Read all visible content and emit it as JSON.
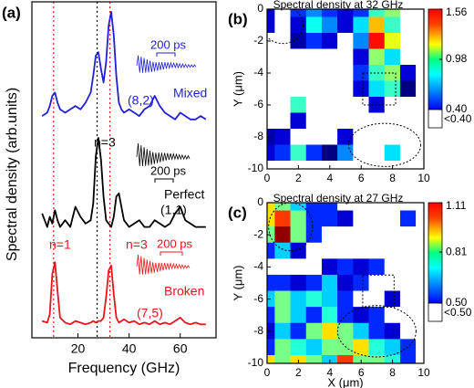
{
  "chart_data": [
    {
      "type": "line",
      "panel_label": "(a)",
      "xlabel": "Frequency (GHz)",
      "ylabel": "Spectral density (arb.units)",
      "xlim": [
        2,
        74
      ],
      "ylim": [
        0,
        10
      ],
      "xticks": [
        20,
        40,
        60
      ],
      "x": [
        6,
        8,
        9,
        10,
        11,
        12,
        13,
        15,
        17,
        19,
        21,
        23,
        25,
        26,
        27,
        28,
        29,
        30,
        31,
        32,
        33,
        34,
        35,
        36,
        37,
        38,
        40,
        42,
        44,
        46,
        48,
        50,
        52,
        54,
        56,
        58,
        60,
        62,
        64,
        66,
        68,
        70
      ],
      "series": [
        {
          "name": "Mixed",
          "color": "#1f1fd6",
          "values": [
            6.6,
            6.7,
            6.9,
            7.2,
            7.3,
            7.0,
            6.8,
            6.7,
            6.8,
            6.9,
            6.8,
            7.0,
            7.3,
            7.8,
            8.4,
            8.5,
            8.0,
            7.6,
            8.2,
            9.3,
            9.7,
            9.0,
            7.8,
            7.0,
            6.8,
            6.7,
            6.8,
            6.7,
            6.6,
            6.8,
            6.9,
            7.2,
            6.9,
            6.7,
            6.6,
            6.5,
            6.7,
            6.6,
            6.5,
            6.5,
            6.6,
            6.5
          ]
        },
        {
          "name": "Perfect",
          "color": "#000000",
          "values": [
            3.7,
            3.3,
            3.6,
            3.4,
            3.8,
            3.5,
            3.3,
            3.5,
            3.3,
            3.9,
            3.6,
            3.4,
            3.5,
            4.0,
            5.4,
            5.95,
            5.3,
            4.2,
            3.5,
            3.4,
            3.3,
            3.6,
            4.2,
            4.3,
            3.9,
            3.5,
            3.3,
            3.4,
            3.5,
            3.3,
            3.3,
            3.5,
            3.4,
            3.3,
            3.4,
            3.7,
            3.9,
            3.5,
            3.4,
            3.3,
            3.3,
            3.3
          ]
        },
        {
          "name": "Broken",
          "color": "#e8141c",
          "values": [
            0.5,
            0.45,
            0.7,
            1.9,
            2.25,
            1.4,
            0.6,
            0.45,
            0.4,
            0.5,
            0.45,
            0.4,
            0.45,
            0.5,
            0.45,
            0.5,
            0.5,
            0.6,
            1.2,
            2.0,
            2.15,
            1.3,
            0.6,
            0.45,
            0.5,
            0.55,
            0.45,
            0.5,
            0.4,
            0.45,
            0.4,
            0.5,
            0.4,
            0.45,
            0.4,
            0.5,
            0.6,
            0.45,
            0.4,
            0.45,
            0.4,
            0.4
          ]
        }
      ],
      "vlines": [
        {
          "x": 10.5,
          "color": "#e8141c"
        },
        {
          "x": 27.5,
          "color": "#000000"
        },
        {
          "x": 32.5,
          "color": "#e8141c"
        }
      ],
      "annotations": [
        {
          "text": "(8,2)",
          "color": "#1f1fd6"
        },
        {
          "text": "200 ps",
          "color": "#1f1fd6"
        },
        {
          "text": "n=3",
          "color": "#000000"
        },
        {
          "text": "200 ps",
          "color": "#000000"
        },
        {
          "text": "(1.1)",
          "color": "#000000"
        },
        {
          "text": "n=1",
          "color": "#e8141c"
        },
        {
          "text": "n=3",
          "color": "#e8141c"
        },
        {
          "text": "200 ps",
          "color": "#e8141c"
        },
        {
          "text": "(7,5)",
          "color": "#e8141c"
        }
      ]
    },
    {
      "type": "heatmap",
      "panel_label": "(b)",
      "title": "Spectral density at 32 GHz",
      "ylabel": "Y (μm)",
      "xlim": [
        0,
        10
      ],
      "ylim": [
        -10,
        0
      ],
      "xticks": [
        0,
        2,
        4,
        6,
        8,
        10
      ],
      "yticks": [
        0,
        -2,
        -4,
        -6,
        -8,
        -10
      ],
      "x": [
        0,
        1,
        2,
        3,
        4,
        5,
        6,
        7,
        8,
        9,
        10
      ],
      "y": [
        0,
        -1,
        -2,
        -3,
        -4,
        -5,
        -6,
        -7,
        -8,
        -9,
        -10
      ],
      "z": [
        [
          0.5,
          0.3,
          0.6,
          0.7,
          0.6,
          0.5,
          0.6,
          0.9,
          1.0,
          0.3,
          0.3
        ],
        [
          0.5,
          0.3,
          0.5,
          0.85,
          0.7,
          0.5,
          0.8,
          1.2,
          0.9,
          0.3,
          0.3
        ],
        [
          0.3,
          0.3,
          0.45,
          0.6,
          0.5,
          0.3,
          0.7,
          1.4,
          1.1,
          0.3,
          0.3
        ],
        [
          0.3,
          0.3,
          0.3,
          0.3,
          0.3,
          0.3,
          0.5,
          1.0,
          0.8,
          0.3,
          0.3
        ],
        [
          0.3,
          0.3,
          0.3,
          0.3,
          0.3,
          0.3,
          0.6,
          0.9,
          1.0,
          0.5,
          0.3
        ],
        [
          0.3,
          0.3,
          0.3,
          0.3,
          0.3,
          0.3,
          0.5,
          0.8,
          0.9,
          0.4,
          0.3
        ],
        [
          0.3,
          0.3,
          0.9,
          0.3,
          0.3,
          0.3,
          0.3,
          0.5,
          0.3,
          0.3,
          0.3
        ],
        [
          0.3,
          0.3,
          0.5,
          0.3,
          0.3,
          0.3,
          0.3,
          0.3,
          0.3,
          0.3,
          0.3
        ],
        [
          0.45,
          0.5,
          0.3,
          0.3,
          0.3,
          0.5,
          0.3,
          0.3,
          0.3,
          0.3,
          0.3
        ],
        [
          0.5,
          0.6,
          0.9,
          0.6,
          0.4,
          0.7,
          0.3,
          0.3,
          0.8,
          0.3,
          0.3
        ],
        [
          0.3,
          0.3,
          0.3,
          0.3,
          0.3,
          0.3,
          0.3,
          0.3,
          0.3,
          0.3,
          0.3
        ]
      ],
      "zlim": [
        0.4,
        1.56
      ],
      "zticks": [
        {
          "value": 0.4,
          "label": "0.40"
        },
        0.98,
        1.56
      ],
      "below_label": "<0.40",
      "colormap": "jet"
    },
    {
      "type": "heatmap",
      "panel_label": "(c)",
      "title": "Spectral density at 27 GHz",
      "xlabel": "X (μm)",
      "ylabel": "Y (μm)",
      "xlim": [
        0,
        10
      ],
      "ylim": [
        -10,
        0
      ],
      "xticks": [
        0,
        2,
        4,
        6,
        8,
        10
      ],
      "yticks": [
        0,
        -2,
        -4,
        -6,
        -8,
        -10
      ],
      "x": [
        0,
        1,
        2,
        3,
        4,
        5,
        6,
        7,
        8,
        9,
        10
      ],
      "y": [
        0,
        -1,
        -2,
        -3,
        -4,
        -5,
        -6,
        -7,
        -8,
        -9,
        -10
      ],
      "z": [
        [
          0.9,
          0.8,
          0.7,
          0.6,
          0.6,
          0.3,
          0.3,
          0.3,
          0.3,
          0.3,
          0.3
        ],
        [
          0.9,
          1.0,
          0.8,
          0.6,
          0.6,
          0.55,
          0.3,
          0.3,
          0.3,
          0.6,
          0.3
        ],
        [
          0.8,
          1.1,
          0.8,
          0.6,
          0.3,
          0.3,
          0.3,
          0.3,
          0.3,
          0.3,
          0.3
        ],
        [
          0.6,
          0.7,
          0.55,
          0.3,
          0.3,
          0.3,
          0.3,
          0.3,
          0.3,
          0.3,
          0.3
        ],
        [
          0.3,
          0.3,
          0.3,
          0.3,
          0.55,
          0.6,
          0.55,
          0.6,
          0.3,
          0.3,
          0.3
        ],
        [
          0.6,
          0.6,
          0.55,
          0.6,
          0.7,
          0.55,
          0.6,
          0.3,
          0.3,
          0.3,
          0.3
        ],
        [
          0.7,
          0.8,
          0.7,
          0.75,
          0.7,
          0.6,
          0.3,
          0.3,
          0.55,
          0.3,
          0.3
        ],
        [
          0.6,
          0.8,
          0.7,
          0.6,
          0.75,
          0.6,
          0.55,
          0.6,
          0.3,
          0.3,
          0.3
        ],
        [
          0.55,
          0.7,
          0.6,
          0.8,
          0.9,
          0.8,
          0.7,
          0.6,
          0.55,
          0.3,
          0.3
        ],
        [
          0.6,
          0.8,
          0.75,
          0.7,
          0.8,
          0.8,
          0.9,
          0.75,
          0.7,
          0.6,
          0.3
        ],
        [
          0.9,
          0.8,
          0.9,
          0.8,
          0.7,
          1.0,
          0.8,
          0.8,
          0.75,
          0.6,
          0.3
        ]
      ],
      "zlim": [
        0.5,
        1.11
      ],
      "zticks": [
        {
          "value": 0.5,
          "label": "0.50"
        },
        0.81,
        1.11
      ],
      "below_label": "<0.50",
      "colormap": "jet"
    }
  ]
}
